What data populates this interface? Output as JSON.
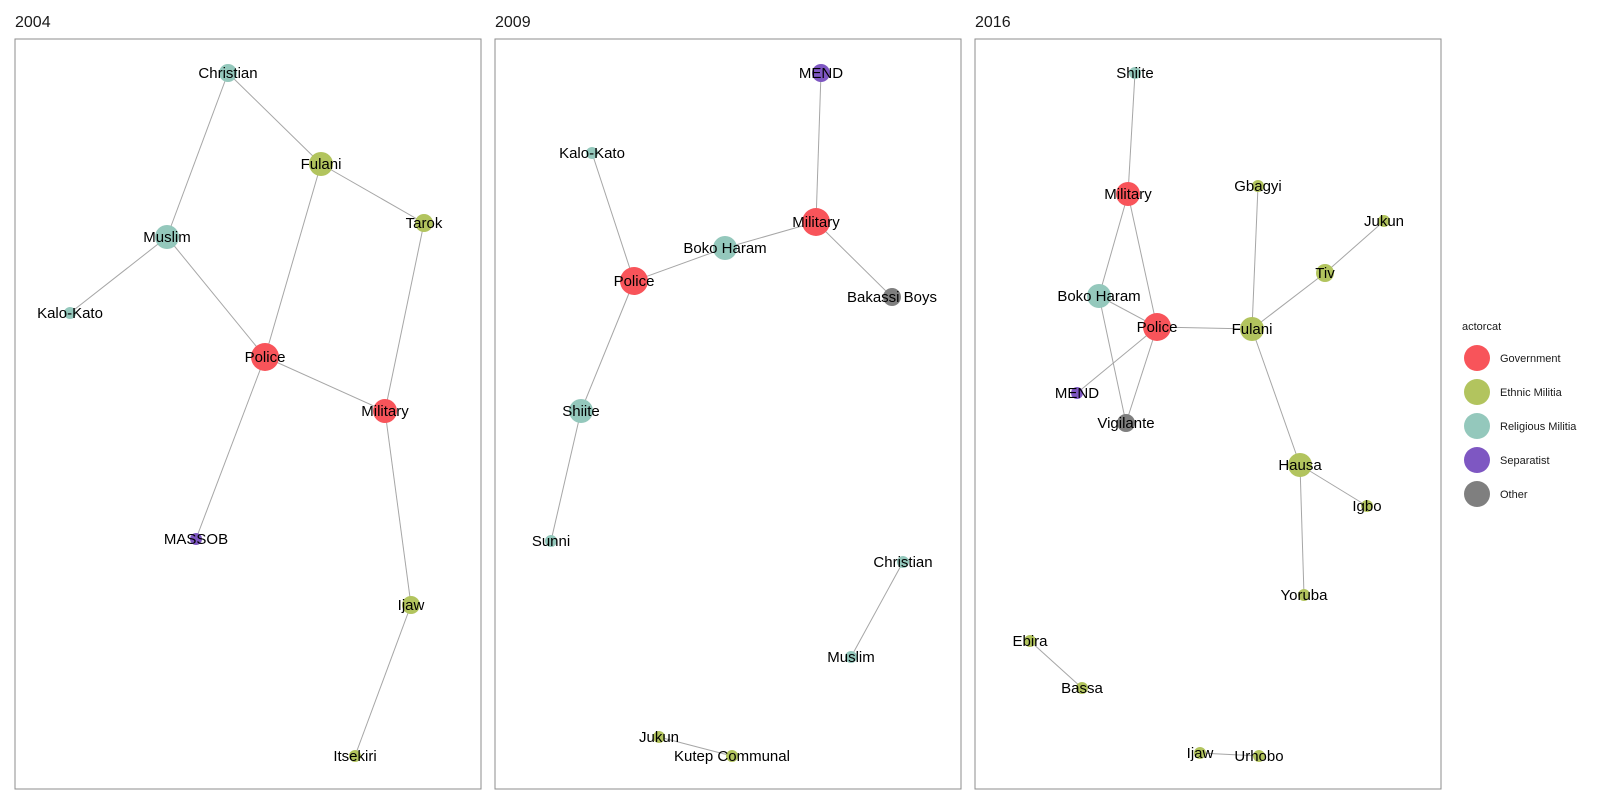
{
  "panels": [
    {
      "title": "2004",
      "nodes": [
        {
          "id": "Christian",
          "label": "Christian",
          "cat": "Religious Militia",
          "size": "small"
        },
        {
          "id": "Fulani",
          "label": "Fulani",
          "cat": "Ethnic Militia",
          "size": "medium"
        },
        {
          "id": "Tarok",
          "label": "Tarok",
          "cat": "Ethnic Militia",
          "size": "small"
        },
        {
          "id": "Muslim",
          "label": "Muslim",
          "cat": "Religious Militia",
          "size": "medium"
        },
        {
          "id": "Kalo-Kato",
          "label": "Kalo-Kato",
          "cat": "Religious Militia",
          "size": "tiny"
        },
        {
          "id": "Police",
          "label": "Police",
          "cat": "Government",
          "size": "large"
        },
        {
          "id": "Military",
          "label": "Military",
          "cat": "Government",
          "size": "medium"
        },
        {
          "id": "MASSOB",
          "label": "MASSOB",
          "cat": "Separatist",
          "size": "tiny"
        },
        {
          "id": "Ijaw",
          "label": "Ijaw",
          "cat": "Ethnic Militia",
          "size": "small"
        },
        {
          "id": "Itsekiri",
          "label": "Itsekiri",
          "cat": "Ethnic Militia",
          "size": "tiny"
        }
      ],
      "edges": [
        [
          "Christian",
          "Fulani"
        ],
        [
          "Christian",
          "Muslim"
        ],
        [
          "Fulani",
          "Tarok"
        ],
        [
          "Fulani",
          "Police"
        ],
        [
          "Muslim",
          "Kalo-Kato"
        ],
        [
          "Muslim",
          "Police"
        ],
        [
          "Police",
          "Military"
        ],
        [
          "Police",
          "MASSOB"
        ],
        [
          "Tarok",
          "Military"
        ],
        [
          "Military",
          "Ijaw"
        ],
        [
          "Ijaw",
          "Itsekiri"
        ]
      ]
    },
    {
      "title": "2009",
      "nodes": [
        {
          "id": "MEND",
          "label": "MEND",
          "cat": "Separatist",
          "size": "small"
        },
        {
          "id": "Kalo-Kato",
          "label": "Kalo-Kato",
          "cat": "Religious Militia",
          "size": "tiny"
        },
        {
          "id": "Military",
          "label": "Military",
          "cat": "Government",
          "size": "large"
        },
        {
          "id": "Boko Haram",
          "label": "Boko Haram",
          "cat": "Religious Militia",
          "size": "medium"
        },
        {
          "id": "Police",
          "label": "Police",
          "cat": "Government",
          "size": "large"
        },
        {
          "id": "Bakassi Boys",
          "label": "Bakassi Boys",
          "cat": "Other",
          "size": "small"
        },
        {
          "id": "Shiite",
          "label": "Shiite",
          "cat": "Religious Militia",
          "size": "medium"
        },
        {
          "id": "Sunni",
          "label": "Sunni",
          "cat": "Religious Militia",
          "size": "tiny"
        },
        {
          "id": "Christian",
          "label": "Christian",
          "cat": "Religious Militia",
          "size": "tiny"
        },
        {
          "id": "Muslim",
          "label": "Muslim",
          "cat": "Religious Militia",
          "size": "tiny"
        },
        {
          "id": "Jukun",
          "label": "Jukun",
          "cat": "Ethnic Militia",
          "size": "tiny"
        },
        {
          "id": "Kutep Communal",
          "label": "Kutep Communal",
          "cat": "Ethnic Militia",
          "size": "tiny"
        }
      ],
      "edges": [
        [
          "MEND",
          "Military"
        ],
        [
          "Military",
          "Boko Haram"
        ],
        [
          "Military",
          "Bakassi Boys"
        ],
        [
          "Kalo-Kato",
          "Police"
        ],
        [
          "Police",
          "Boko Haram"
        ],
        [
          "Police",
          "Shiite"
        ],
        [
          "Shiite",
          "Sunni"
        ],
        [
          "Christian",
          "Muslim"
        ],
        [
          "Jukun",
          "Kutep Communal"
        ]
      ]
    },
    {
      "title": "2016",
      "nodes": [
        {
          "id": "Shiite",
          "label": "Shiite",
          "cat": "Religious Militia",
          "size": "tiny"
        },
        {
          "id": "Military",
          "label": "Military",
          "cat": "Government",
          "size": "medium"
        },
        {
          "id": "Gbagyi",
          "label": "Gbagyi",
          "cat": "Ethnic Militia",
          "size": "tiny"
        },
        {
          "id": "Jukun",
          "label": "Jukun",
          "cat": "Ethnic Militia",
          "size": "tiny"
        },
        {
          "id": "Tiv",
          "label": "Tiv",
          "cat": "Ethnic Militia",
          "size": "small"
        },
        {
          "id": "Boko Haram",
          "label": "Boko Haram",
          "cat": "Religious Militia",
          "size": "medium"
        },
        {
          "id": "Police",
          "label": "Police",
          "cat": "Government",
          "size": "large"
        },
        {
          "id": "Fulani",
          "label": "Fulani",
          "cat": "Ethnic Militia",
          "size": "medium"
        },
        {
          "id": "MEND",
          "label": "MEND",
          "cat": "Separatist",
          "size": "tiny"
        },
        {
          "id": "Vigilante",
          "label": "Vigilante",
          "cat": "Other",
          "size": "small"
        },
        {
          "id": "Hausa",
          "label": "Hausa",
          "cat": "Ethnic Militia",
          "size": "medium"
        },
        {
          "id": "Igbo",
          "label": "Igbo",
          "cat": "Ethnic Militia",
          "size": "tiny"
        },
        {
          "id": "Yoruba",
          "label": "Yoruba",
          "cat": "Ethnic Militia",
          "size": "tiny"
        },
        {
          "id": "Ebira",
          "label": "Ebira",
          "cat": "Ethnic Militia",
          "size": "tiny"
        },
        {
          "id": "Bassa",
          "label": "Bassa",
          "cat": "Ethnic Militia",
          "size": "tiny"
        },
        {
          "id": "Ijaw",
          "label": "Ijaw",
          "cat": "Ethnic Militia",
          "size": "tiny"
        },
        {
          "id": "Urhobo",
          "label": "Urhobo",
          "cat": "Ethnic Militia",
          "size": "tiny"
        }
      ],
      "edges": [
        [
          "Shiite",
          "Military"
        ],
        [
          "Military",
          "Boko Haram"
        ],
        [
          "Military",
          "Police"
        ],
        [
          "Boko Haram",
          "Police"
        ],
        [
          "Boko Haram",
          "Vigilante"
        ],
        [
          "Police",
          "Vigilante"
        ],
        [
          "Police",
          "MEND"
        ],
        [
          "Police",
          "Fulani"
        ],
        [
          "Fulani",
          "Gbagyi"
        ],
        [
          "Fulani",
          "Tiv"
        ],
        [
          "Tiv",
          "Jukun"
        ],
        [
          "Fulani",
          "Hausa"
        ],
        [
          "Hausa",
          "Igbo"
        ],
        [
          "Hausa",
          "Yoruba"
        ],
        [
          "Ebira",
          "Bassa"
        ],
        [
          "Ijaw",
          "Urhobo"
        ]
      ]
    }
  ],
  "legend": {
    "title": "actorcat",
    "items": [
      {
        "label": "Government",
        "color": "#f8545a"
      },
      {
        "label": "Ethnic Militia",
        "color": "#b2c45e"
      },
      {
        "label": "Religious Militia",
        "color": "#94c8bc"
      },
      {
        "label": "Separatist",
        "color": "#7e57c2"
      },
      {
        "label": "Other",
        "color": "#7f7f7f"
      }
    ]
  }
}
